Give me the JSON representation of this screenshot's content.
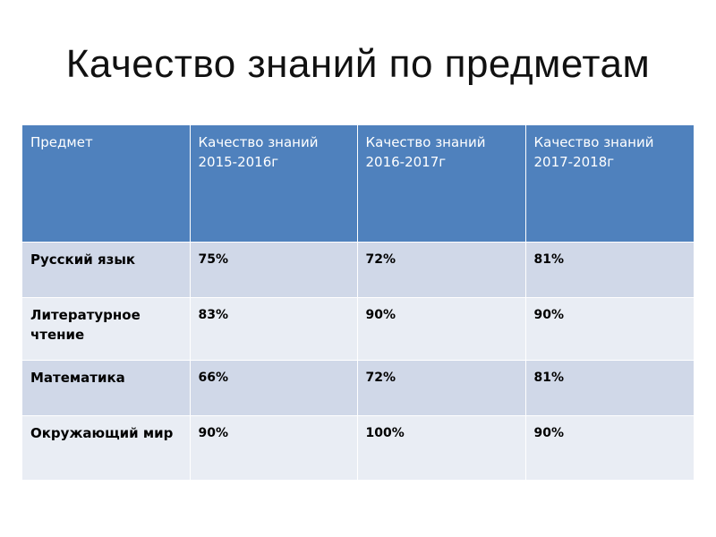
{
  "title": "Качество знаний по предметам",
  "table": {
    "headers": [
      "Предмет",
      "Качество знаний 2015-2016г",
      "Качество знаний 2016-2017г",
      "Качество знаний 2017-2018г"
    ],
    "rows": [
      {
        "subject": "Русский язык",
        "values": [
          "75%",
          "72%",
          "81%"
        ]
      },
      {
        "subject": "Литературное чтение",
        "values": [
          "83%",
          "90%",
          "90%"
        ]
      },
      {
        "subject": "Математика",
        "values": [
          "66%",
          "72%",
          "81%"
        ]
      },
      {
        "subject": "Окружающий мир",
        "values": [
          "90%",
          "100%",
          "90%"
        ]
      }
    ]
  },
  "colors": {
    "header_bg": "#4f81bd",
    "header_text": "#ffffff",
    "row_band_dark": "#d0d8e8",
    "row_band_light": "#e9edf4"
  }
}
